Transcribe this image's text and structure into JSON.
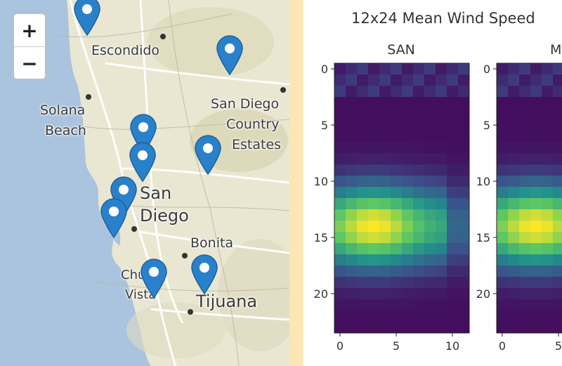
{
  "map": {
    "zoom_in_label": "+",
    "zoom_out_label": "−",
    "places": [
      {
        "key": "escondido",
        "name": "Escondido"
      },
      {
        "key": "solana1",
        "name": "Solana"
      },
      {
        "key": "solana2",
        "name": "Beach"
      },
      {
        "key": "sdcountry1",
        "name": "San Diego"
      },
      {
        "key": "sdcountry2",
        "name": "Country"
      },
      {
        "key": "sdcountry3",
        "name": "Estates"
      },
      {
        "key": "sandiego1",
        "name": "San"
      },
      {
        "key": "sandiego2",
        "name": "Diego"
      },
      {
        "key": "bonita",
        "name": "Bonita"
      },
      {
        "key": "chula1",
        "name": "Chula"
      },
      {
        "key": "chula2",
        "name": "Vista"
      },
      {
        "key": "tijuana",
        "name": "Tijuana"
      }
    ],
    "marker_icon": "map-marker-icon",
    "marker_color": "#2a81cb",
    "water_color": "#aac3de",
    "land_color": "#e9e6d2"
  },
  "chart_data": {
    "type": "heatmap",
    "title": "12x24 Mean Wind Speed",
    "colormap": "viridis",
    "grid": false,
    "panels": [
      {
        "name": "SAN",
        "rows": 24,
        "cols": 12,
        "xticks": [
          0,
          5,
          10
        ],
        "yticks": [
          0,
          5,
          10,
          15,
          20
        ],
        "peak_row": 14,
        "peak_col": 3,
        "note_values_normalized_0_1": true
      },
      {
        "name": "MY",
        "rows": 24,
        "cols": 12,
        "xticks": [
          0,
          5
        ],
        "yticks": [
          0,
          5,
          10,
          15,
          20
        ],
        "peak_row": 14,
        "peak_col": 3
      }
    ]
  }
}
